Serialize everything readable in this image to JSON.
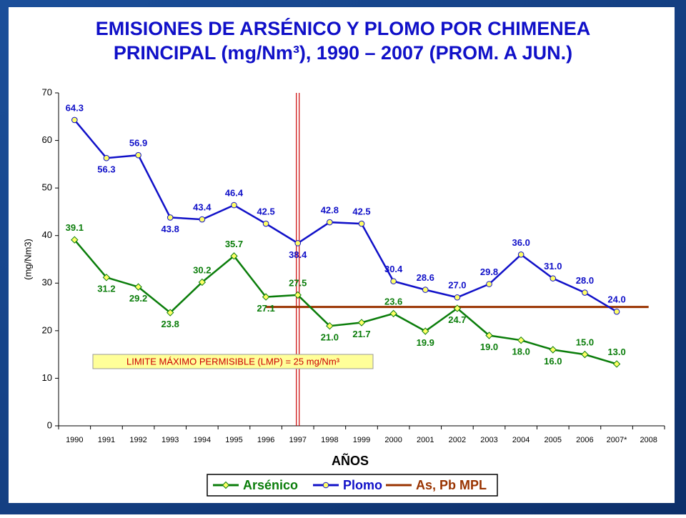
{
  "chart_data": {
    "type": "line",
    "title": [
      "EMISIONES DE ARSÉNICO Y PLOMO POR CHIMENEA",
      "PRINCIPAL (mg/Nm³), 1990 – 2007 (PROM. A JUN.)"
    ],
    "x_label": "AÑOS",
    "y_label": "(mg/Nm3)",
    "annotation": "LIMITE MÁXIMO PERMISIBLE (LMP) = 25 mg/Nm³",
    "categories": [
      "1990",
      "1991",
      "1992",
      "1993",
      "1994",
      "1995",
      "1996",
      "1997",
      "1998",
      "1999",
      "2000",
      "2001",
      "2002",
      "2003",
      "2004",
      "2005",
      "2006",
      "2007*",
      "2008"
    ],
    "series": [
      {
        "name": "Arsénico",
        "color": "#0a7d0a",
        "marker": "diamond",
        "values": [
          39.1,
          31.2,
          29.2,
          23.8,
          30.2,
          35.7,
          27.1,
          27.5,
          21.0,
          21.7,
          23.6,
          19.9,
          24.7,
          19.0,
          18.0,
          16.0,
          15.0,
          13.0,
          null
        ],
        "value_labels": [
          "39.1",
          "31.2",
          "29.2",
          "23.8",
          "30.2",
          "35.7",
          "27.1",
          "27.5",
          "21.0",
          "21.7",
          "23.6",
          "19.9",
          "24.7",
          "19.0",
          "18.0",
          "16.0",
          "15.0",
          "13.0",
          null
        ]
      },
      {
        "name": "Plomo",
        "color": "#1010c8",
        "marker": "circle",
        "values": [
          64.3,
          56.3,
          56.9,
          43.8,
          43.4,
          46.4,
          42.5,
          38.4,
          42.8,
          42.5,
          30.4,
          28.6,
          27.0,
          29.8,
          36.0,
          31.0,
          28.0,
          24.0,
          null
        ],
        "value_labels": [
          "64.3",
          "56.3",
          "56.9",
          "43.8",
          "43.4",
          "46.4",
          "42.5",
          "38.4",
          "42.8",
          "42.5",
          "30.4",
          "28.6",
          "27.0",
          "29.8",
          "36.0",
          "31.0",
          "28.0",
          "24.0",
          null
        ]
      },
      {
        "name": "As, Pb MPL",
        "color": "#993300",
        "marker": "none",
        "values": [
          null,
          null,
          null,
          null,
          null,
          null,
          25,
          25,
          25,
          25,
          25,
          25,
          25,
          25,
          25,
          25,
          25,
          25,
          25
        ]
      }
    ],
    "ylim": [
      0,
      70
    ],
    "yticks": [
      0,
      10,
      20,
      30,
      40,
      50,
      60,
      70
    ],
    "grid": false,
    "legend": "bottom"
  }
}
